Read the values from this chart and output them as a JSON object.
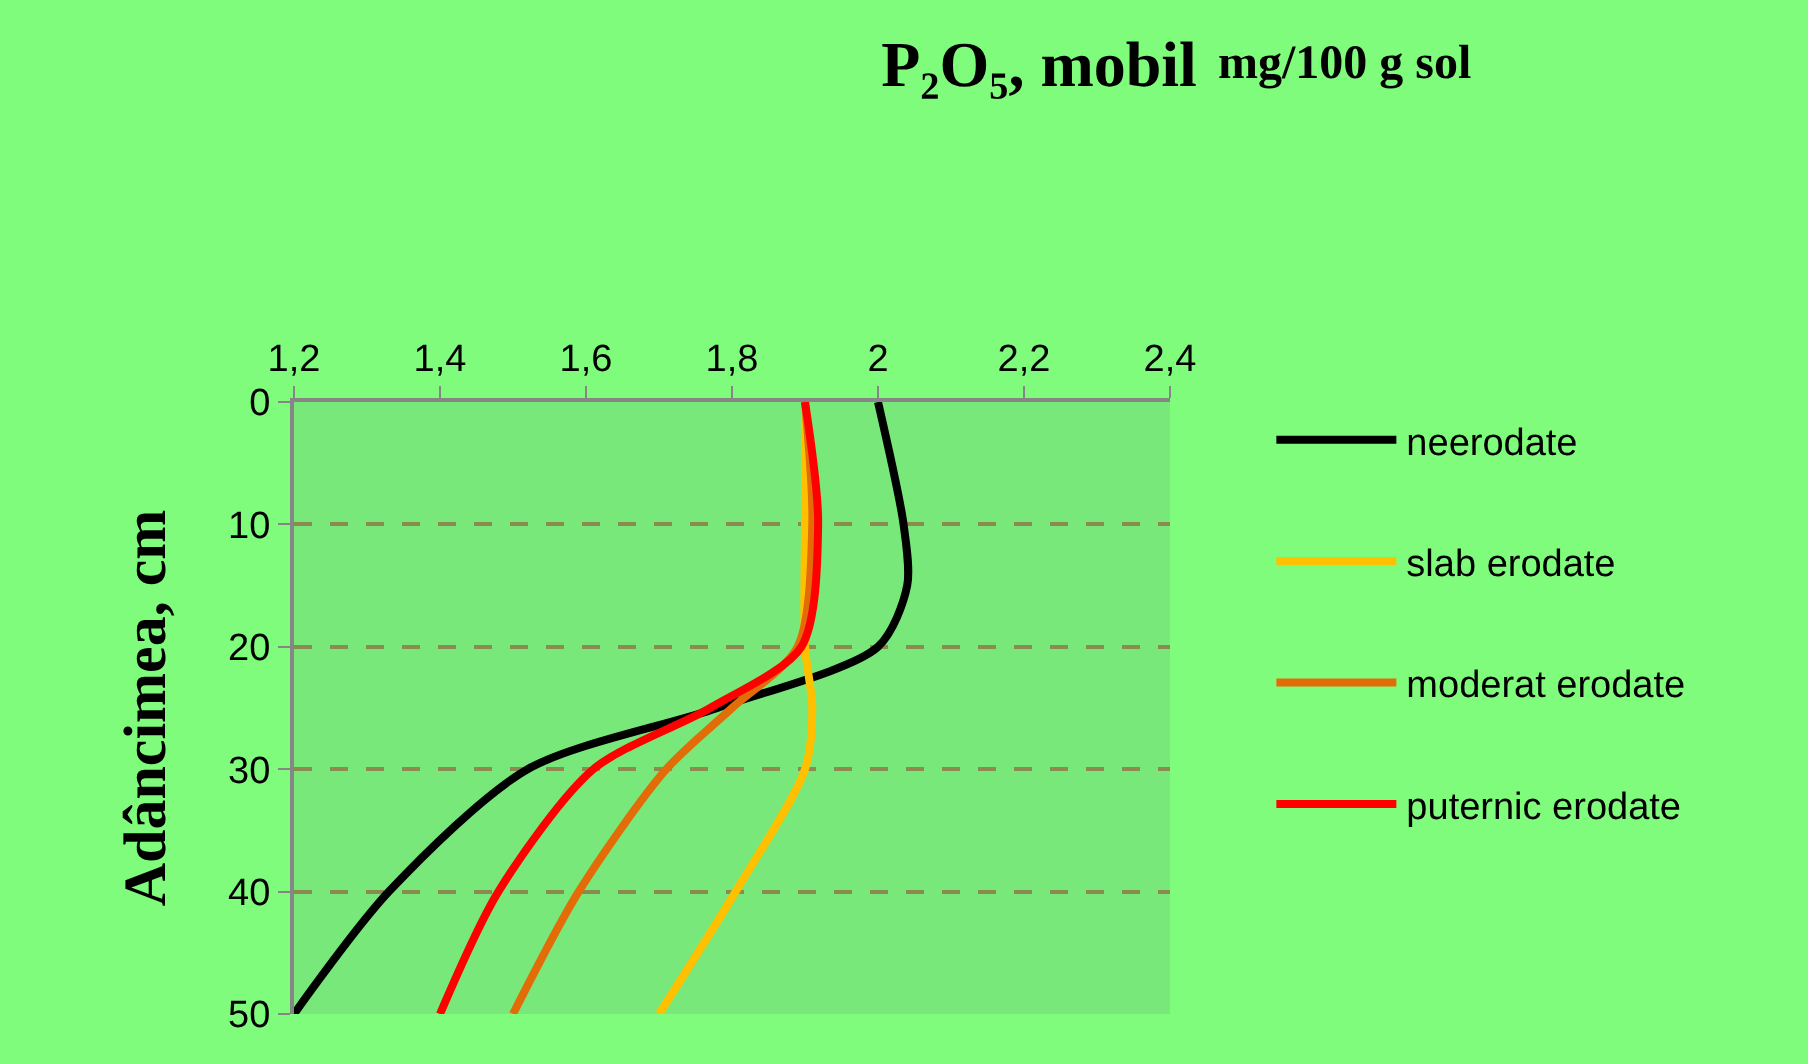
{
  "chart_data": {
    "type": "line",
    "title": "P₂O₅, mobil",
    "annotations": [
      "mg/100 g sol"
    ],
    "ylabel": "Adâncimea, cm",
    "xlim": [
      1.2,
      2.4
    ],
    "xticks": [
      {
        "value": 1.2,
        "label": "1,2"
      },
      {
        "value": 1.4,
        "label": "1,4"
      },
      {
        "value": 1.6,
        "label": "1,6"
      },
      {
        "value": 1.8,
        "label": "1,8"
      },
      {
        "value": 2,
        "label": "2"
      },
      {
        "value": 2.2,
        "label": "2,2"
      },
      {
        "value": 2.4,
        "label": "2,4"
      }
    ],
    "ylim": [
      50,
      0
    ],
    "yticks": [
      0,
      10,
      20,
      30,
      40,
      50
    ],
    "grid": "y",
    "legend": "right",
    "marker": "none",
    "line_style": "solid",
    "series": [
      {
        "name": "neerodate",
        "color": "#000000",
        "x": [
          2.0,
          2.035,
          2.04,
          2.0,
          1.78,
          1.52,
          1.33,
          1.2
        ],
        "values": [
          0,
          10,
          15,
          20,
          25,
          30,
          40,
          50
        ]
      },
      {
        "name": "slab erodate",
        "color": "#ffc000",
        "x": [
          1.9,
          1.9,
          1.9,
          1.91,
          1.9,
          1.805,
          1.7
        ],
        "values": [
          0,
          10,
          20,
          25,
          30,
          40,
          50
        ]
      },
      {
        "name": "moderat erodate",
        "color": "#e36c09",
        "x": [
          1.9,
          1.91,
          1.89,
          1.8,
          1.71,
          1.59,
          1.5
        ],
        "values": [
          0,
          10,
          20,
          25,
          30,
          40,
          50
        ]
      },
      {
        "name": "puternic erodate",
        "color": "#ff0000",
        "x": [
          1.9,
          1.918,
          1.895,
          1.77,
          1.61,
          1.48,
          1.4
        ],
        "values": [
          0,
          10,
          20,
          25,
          30,
          40,
          50
        ]
      }
    ]
  }
}
